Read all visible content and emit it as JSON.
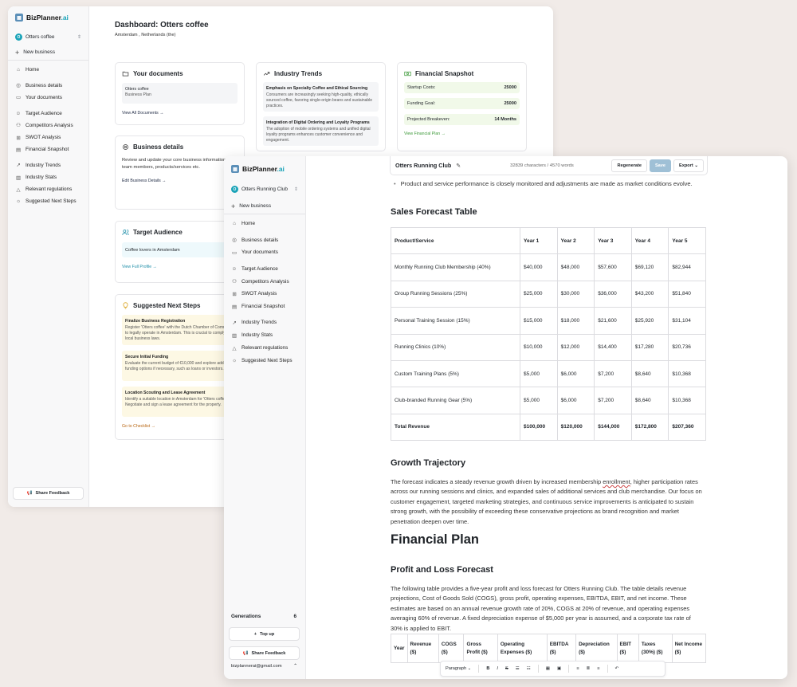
{
  "brand": {
    "name": "BizPlanner",
    "ai": ".ai"
  },
  "back": {
    "business": {
      "initial": "O",
      "name": "Otters coffee"
    },
    "new_business": "New business",
    "nav": [
      "Home",
      "Business details",
      "Your documents",
      "Target Audience",
      "Competitors Analysis",
      "SWOT Analysis",
      "Financial Snapshot",
      "Industry Trends",
      "Industry Stats",
      "Relevant regulations",
      "Suggested Next Steps"
    ],
    "share_feedback": "Share Feedback",
    "title": "Dashboard: Otters coffee",
    "location": "Amsterdam , Netherlands (the)",
    "documents": {
      "title": "Your documents",
      "item_name": "Otters coffee",
      "item_type": "Business Plan",
      "link": "View All Documents →"
    },
    "trends": {
      "title": "Industry Trends",
      "items": [
        {
          "title": "Emphasis on Specialty Coffee and Ethical Sourcing",
          "desc": "Consumers are increasingly seeking high-quality, ethically sourced coffee, favoring single-origin beans and sustainable practices."
        },
        {
          "title": "Integration of Digital Ordering and Loyalty Programs",
          "desc": "The adoption of mobile ordering systems and unified digital loyalty programs enhances customer convenience and engagement."
        }
      ]
    },
    "financial": {
      "title": "Financial Snapshot",
      "rows": [
        {
          "label": "Startup Costs:",
          "value": "25000"
        },
        {
          "label": "Funding Goal:",
          "value": "25000"
        },
        {
          "label": "Projected Breakeven:",
          "value": "14 Months"
        }
      ],
      "link": "View Financial Plan →"
    },
    "details": {
      "title": "Business details",
      "text": "Review and update your core business information, team members, products/services etc.",
      "link": "Edit Business Details →"
    },
    "audience": {
      "title": "Target Audience",
      "item": "Coffee lovers in Amsterdam",
      "link": "View Full Profile →"
    },
    "steps": {
      "title": "Suggested Next Steps",
      "items": [
        {
          "title": "Finalize Business Registration",
          "desc": "Register 'Otters coffee' with the Dutch Chamber of Commerce to legally operate in Amsterdam. This is crucial to comply with local business laws."
        },
        {
          "title": "Secure Initial Funding",
          "desc": "Evaluate the current budget of €10,000 and explore additional funding options if necessary, such as loans or investors."
        },
        {
          "title": "Location Scouting and Lease Agreement",
          "desc": "Identify a suitable location in Amsterdam for 'Otters coffee'. Negotiate and sign a lease agreement for the property."
        }
      ],
      "link": "Go to Checklist →"
    }
  },
  "front": {
    "business": {
      "initial": "O",
      "name": "Otters Running Club"
    },
    "new_business": "New business",
    "nav": [
      "Home",
      "Business details",
      "Your documents",
      "Target Audience",
      "Competitors Analysis",
      "SWOT Analysis",
      "Financial Snapshot",
      "Industry Trends",
      "Industry Stats",
      "Relevant regulations",
      "Suggested Next Steps"
    ],
    "generations_label": "Generations",
    "generations_count": "6",
    "top_up": "Top up",
    "share_feedback": "Share Feedback",
    "email": "bizplannerai@gmail.com",
    "doc_name": "Otters Running Club",
    "stats": "32839 characters / 4570 words",
    "regenerate": "Regenerate",
    "save": "Save",
    "export": "Export",
    "bullet": "Product and service performance is closely monitored and adjustments are made as market conditions evolve.",
    "sales_heading": "Sales Forecast Table",
    "sales_table": {
      "headers": [
        "Product/Service",
        "Year 1",
        "Year 2",
        "Year 3",
        "Year 4",
        "Year 5"
      ],
      "rows": [
        [
          "Monthly Running Club Membership (40%)",
          "$40,000",
          "$48,000",
          "$57,600",
          "$69,120",
          "$82,944"
        ],
        [
          "Group Running Sessions (25%)",
          "$25,000",
          "$30,000",
          "$36,000",
          "$43,200",
          "$51,840"
        ],
        [
          "Personal Training Session (15%)",
          "$15,000",
          "$18,000",
          "$21,600",
          "$25,920",
          "$31,104"
        ],
        [
          "Running Clinics (10%)",
          "$10,000",
          "$12,000",
          "$14,400",
          "$17,280",
          "$20,736"
        ],
        [
          "Custom Training Plans (5%)",
          "$5,000",
          "$6,000",
          "$7,200",
          "$8,640",
          "$10,368"
        ],
        [
          "Club-branded Running Gear (5%)",
          "$5,000",
          "$6,000",
          "$7,200",
          "$8,640",
          "$10,368"
        ]
      ],
      "total": [
        "Total Revenue",
        "$100,000",
        "$120,000",
        "$144,000",
        "$172,800",
        "$207,360"
      ]
    },
    "growth_heading": "Growth Trajectory",
    "growth_before": "The forecast indicates a steady revenue growth driven by increased membership ",
    "growth_underlined": "enrollment",
    "growth_after": ", higher participation rates across our running sessions and clinics, and expanded sales of additional services and club merchandise. Our focus on customer engagement, targeted marketing strategies, and continuous service improvements is anticipated to sustain strong growth, with the possibility of exceeding these conservative projections as brand recognition and market penetration deepen over time.",
    "financial_plan": "Financial Plan",
    "pl_heading": "Profit and Loss Forecast",
    "pl_para": "The following table provides a five-year profit and loss forecast for Otters Running Club. The table details revenue projections, Cost of Goods Sold (COGS), gross profit, operating expenses, EBITDA, EBIT, and net income. These estimates are based on an annual revenue growth rate of 20%, COGS at 20% of revenue, and operating expenses averaging 60% of revenue. A fixed depreciation expense of $5,000 per year is assumed, and a corporate tax rate of 30% is applied to EBIT.",
    "pl_headers": [
      "Year",
      "Revenue ($)",
      "COGS ($)",
      "Gross Profit ($)",
      "Operating Expenses ($)",
      "EBITDA ($)",
      "Depreciation ($)",
      "EBIT ($)",
      "Taxes (30%) ($)",
      "Net Income ($)"
    ],
    "toolbar_style": "Paragraph"
  }
}
